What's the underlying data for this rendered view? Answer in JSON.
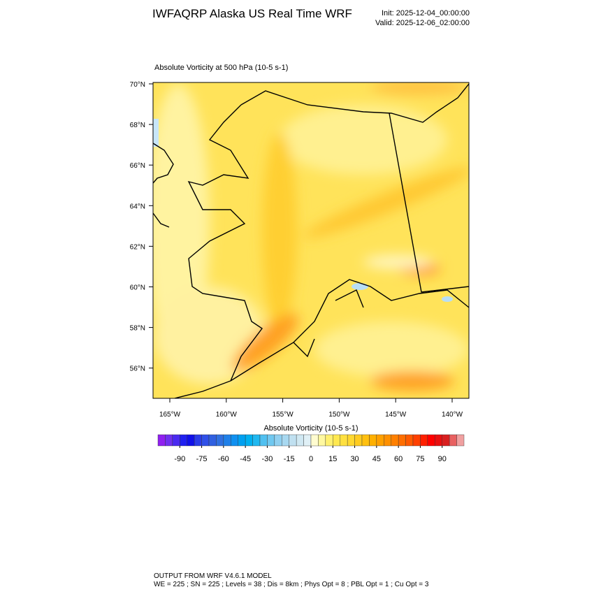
{
  "header": {
    "title": "IWFAQRP Alaska US Real Time WRF",
    "init": "Init: 2025-12-04_00:00:00",
    "valid": "Valid: 2025-12-06_02:00:00"
  },
  "map": {
    "title": "Absolute Vorticity at 500 hPa   (10-5 s-1)",
    "lat_labels": [
      "70°N",
      "68°N",
      "66°N",
      "64°N",
      "62°N",
      "60°N",
      "58°N",
      "56°N"
    ],
    "lon_labels": [
      "165°W",
      "160°W",
      "155°W",
      "150°W",
      "145°W",
      "140°W"
    ]
  },
  "colorbar": {
    "title": "Absolute Vorticity  (10-5 s-1)",
    "xlim": [
      -105,
      105
    ],
    "ticks": [
      -90,
      -75,
      -60,
      -45,
      -30,
      -15,
      0,
      15,
      30,
      45,
      60,
      75,
      90
    ],
    "colors": [
      "#9020f0",
      "#7030f0",
      "#4a2af0",
      "#2020f0",
      "#1010e8",
      "#2a3ce8",
      "#3050e8",
      "#3060e0",
      "#3070e0",
      "#2080e8",
      "#1090f0",
      "#00a0f0",
      "#00b0f0",
      "#20b8f0",
      "#50c0f0",
      "#70c8f0",
      "#90d0f0",
      "#a8d8f0",
      "#c0e0f0",
      "#d0e8f2",
      "#e0f0f6",
      "#fffcd0",
      "#fff8a0",
      "#fff070",
      "#ffe850",
      "#ffe040",
      "#ffd830",
      "#ffcc20",
      "#ffc010",
      "#ffb000",
      "#ffa000",
      "#ff9000",
      "#ff8000",
      "#ff6e00",
      "#ff5a00",
      "#ff4000",
      "#ff2000",
      "#ff0000",
      "#e81010",
      "#d82020",
      "#e86060",
      "#f0a0a0"
    ]
  },
  "footer": {
    "line1": "OUTPUT FROM WRF V4.6.1 MODEL",
    "line2": "WE = 225 ; SN = 225 ; Levels = 38 ; Dis = 8km ; Phys Opt = 8 ; PBL Opt = 1 ; Cu Opt = 3"
  }
}
